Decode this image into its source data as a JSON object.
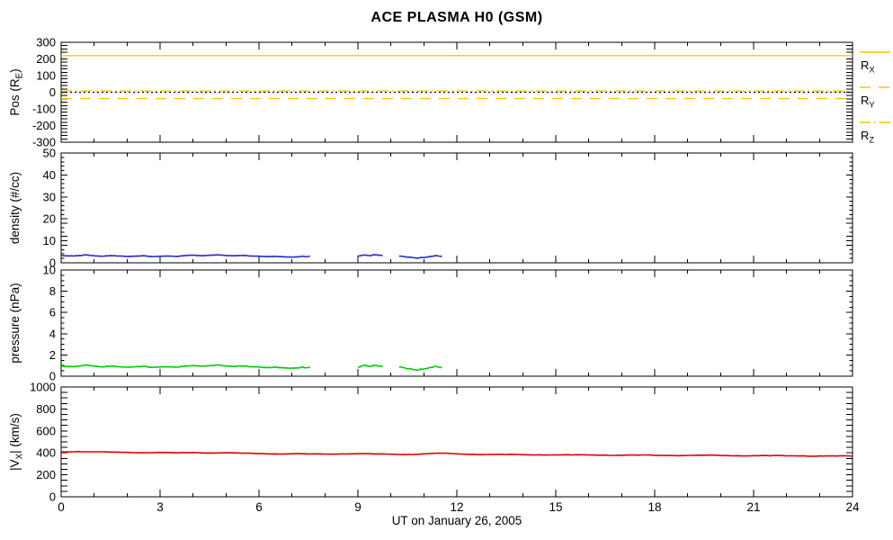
{
  "title": "ACE PLASMA H0 (GSM)",
  "xaxis": {
    "label": "UT on January 26, 2005",
    "min": 0,
    "max": 24,
    "major_step": 3,
    "minor_step": 1,
    "tick_labels": [
      "0",
      "3",
      "6",
      "9",
      "12",
      "15",
      "18",
      "21",
      "24"
    ]
  },
  "colors": {
    "background": "#ffffff",
    "axis": "#000000",
    "orange": "#fec400",
    "blue": "#2828cc",
    "green": "#00cc00",
    "red": "#dd0000"
  },
  "chart_data": {
    "type": "line",
    "grid": false,
    "legend_position": "right-of-first-panel",
    "panels": [
      {
        "name": "position",
        "ylabel": "Pos (R_E)",
        "ylabel_segments": [
          {
            "t": "Pos (R"
          },
          {
            "t": "E",
            "sub": true
          },
          {
            "t": ")"
          }
        ],
        "ylim": [
          -300,
          300
        ],
        "ymajor": 100,
        "yminor": 20,
        "ytick_labels": [
          "-300",
          "-200",
          "-100",
          "0",
          "100",
          "200",
          "300"
        ],
        "zero_line": true,
        "legend": true,
        "hlines": [
          {
            "id": "RX",
            "label": "R_X",
            "label_segments": [
              {
                "t": "R"
              },
              {
                "t": "X",
                "sub": true
              }
            ],
            "value": 220,
            "style": "solid",
            "color": "orange"
          },
          {
            "id": "RY",
            "label": "R_Y",
            "label_segments": [
              {
                "t": "R"
              },
              {
                "t": "Y",
                "sub": true
              }
            ],
            "value": -38,
            "style": "dashed",
            "color": "orange"
          },
          {
            "id": "RZ",
            "label": "R_Z",
            "label_segments": [
              {
                "t": "R"
              },
              {
                "t": "Z",
                "sub": true
              }
            ],
            "value": 8,
            "style": "dashdot",
            "color": "orange"
          }
        ]
      },
      {
        "name": "density",
        "ylabel": "density (#/cc)",
        "ylabel_segments": [
          {
            "t": "density (#/cc)"
          }
        ],
        "ylim": [
          0,
          50
        ],
        "ymajor": 10,
        "yminor": 2,
        "ytick_labels": [
          "0",
          "10",
          "20",
          "30",
          "40",
          "50"
        ],
        "series": [
          {
            "name": "proton-density",
            "color": "blue",
            "noise": 0.14,
            "segments": [
              [
                [
                  0,
                  3.3
                ],
                [
                  0.25,
                  3.1
                ],
                [
                  0.5,
                  3.2
                ],
                [
                  0.75,
                  3.6
                ],
                [
                  1,
                  3.2
                ],
                [
                  1.25,
                  3.0
                ],
                [
                  1.5,
                  3.3
                ],
                [
                  1.75,
                  3.1
                ],
                [
                  2,
                  2.9
                ],
                [
                  2.25,
                  3.0
                ],
                [
                  2.5,
                  3.2
                ],
                [
                  2.75,
                  2.8
                ],
                [
                  3,
                  3.0
                ],
                [
                  3.25,
                  3.1
                ],
                [
                  3.5,
                  2.9
                ],
                [
                  3.75,
                  3.3
                ],
                [
                  4,
                  3.5
                ],
                [
                  4.25,
                  3.2
                ],
                [
                  4.5,
                  3.4
                ],
                [
                  4.75,
                  3.6
                ],
                [
                  5,
                  3.3
                ],
                [
                  5.25,
                  3.2
                ],
                [
                  5.5,
                  3.4
                ],
                [
                  5.75,
                  3.1
                ],
                [
                  6,
                  3.0
                ],
                [
                  6.25,
                  2.8
                ],
                [
                  6.5,
                  2.9
                ],
                [
                  6.75,
                  2.7
                ],
                [
                  7,
                  2.6
                ],
                [
                  7.25,
                  2.8
                ],
                [
                  7.55,
                  3.0
                ]
              ],
              [
                [
                  9.0,
                  3.2
                ],
                [
                  9.2,
                  3.5
                ],
                [
                  9.35,
                  3.3
                ],
                [
                  9.5,
                  3.6
                ],
                [
                  9.65,
                  3.4
                ],
                [
                  9.75,
                  3.3
                ]
              ],
              [
                [
                  10.25,
                  3.0
                ],
                [
                  10.45,
                  2.7
                ],
                [
                  10.65,
                  2.4
                ],
                [
                  10.85,
                  2.2
                ],
                [
                  11.05,
                  2.5
                ],
                [
                  11.25,
                  2.9
                ],
                [
                  11.4,
                  3.2
                ],
                [
                  11.55,
                  3.0
                ]
              ]
            ]
          }
        ]
      },
      {
        "name": "pressure",
        "ylabel": "pressure (nPa)",
        "ylabel_segments": [
          {
            "t": "pressure (nPa)"
          }
        ],
        "ylim": [
          0,
          10
        ],
        "ymajor": 2,
        "yminor": 0.5,
        "ytick_labels": [
          "0",
          "2",
          "4",
          "6",
          "8",
          "10"
        ],
        "series": [
          {
            "name": "flow-pressure",
            "color": "green",
            "noise": 0.05,
            "segments": [
              [
                [
                  0,
                  0.95
                ],
                [
                  0.25,
                  0.9
                ],
                [
                  0.5,
                  0.92
                ],
                [
                  0.75,
                  1.05
                ],
                [
                  1,
                  0.95
                ],
                [
                  1.25,
                  0.88
                ],
                [
                  1.5,
                  0.97
                ],
                [
                  1.75,
                  0.9
                ],
                [
                  2,
                  0.85
                ],
                [
                  2.25,
                  0.88
                ],
                [
                  2.5,
                  0.93
                ],
                [
                  2.75,
                  0.82
                ],
                [
                  3,
                  0.87
                ],
                [
                  3.25,
                  0.9
                ],
                [
                  3.5,
                  0.85
                ],
                [
                  3.75,
                  0.95
                ],
                [
                  4,
                  1.0
                ],
                [
                  4.25,
                  0.93
                ],
                [
                  4.5,
                  0.98
                ],
                [
                  4.75,
                  1.05
                ],
                [
                  5,
                  0.96
                ],
                [
                  5.25,
                  0.93
                ],
                [
                  5.5,
                  0.98
                ],
                [
                  5.75,
                  0.9
                ],
                [
                  6,
                  0.87
                ],
                [
                  6.25,
                  0.8
                ],
                [
                  6.5,
                  0.84
                ],
                [
                  6.75,
                  0.78
                ],
                [
                  7,
                  0.75
                ],
                [
                  7.25,
                  0.8
                ],
                [
                  7.55,
                  0.85
                ]
              ],
              [
                [
                  9.0,
                  0.9
                ],
                [
                  9.2,
                  1.0
                ],
                [
                  9.35,
                  0.95
                ],
                [
                  9.5,
                  1.0
                ],
                [
                  9.65,
                  0.95
                ],
                [
                  9.75,
                  0.93
                ]
              ],
              [
                [
                  10.25,
                  0.85
                ],
                [
                  10.45,
                  0.75
                ],
                [
                  10.65,
                  0.65
                ],
                [
                  10.85,
                  0.6
                ],
                [
                  11.05,
                  0.7
                ],
                [
                  11.25,
                  0.82
                ],
                [
                  11.4,
                  0.9
                ],
                [
                  11.55,
                  0.85
                ]
              ]
            ]
          }
        ]
      },
      {
        "name": "vx",
        "ylabel": "|V_X| (km/s)",
        "ylabel_segments": [
          {
            "t": "|V"
          },
          {
            "t": "X",
            "sub": true
          },
          {
            "t": "| (km/s)"
          }
        ],
        "ylim": [
          0,
          1000
        ],
        "ymajor": 200,
        "yminor": 50,
        "ytick_labels": [
          "0",
          "200",
          "400",
          "600",
          "800",
          "1000"
        ],
        "series": [
          {
            "name": "vx-magnitude",
            "color": "red",
            "noise": 3,
            "segments": [
              [
                [
                  0,
                  408
                ],
                [
                  0.5,
                  412
                ],
                [
                  1,
                  410
                ],
                [
                  1.5,
                  407
                ],
                [
                  2,
                  404
                ],
                [
                  2.5,
                  402
                ],
                [
                  3,
                  404
                ],
                [
                  3.5,
                  400
                ],
                [
                  4,
                  403
                ],
                [
                  4.5,
                  399
                ],
                [
                  5,
                  401
                ],
                [
                  5.5,
                  397
                ],
                [
                  6,
                  394
                ],
                [
                  6.5,
                  391
                ],
                [
                  7,
                  392
                ],
                [
                  7.5,
                  390
                ],
                [
                  8,
                  389
                ],
                [
                  8.5,
                  391
                ],
                [
                  9,
                  393
                ],
                [
                  9.5,
                  390
                ],
                [
                  10,
                  388
                ],
                [
                  10.5,
                  386
                ],
                [
                  11,
                  391
                ],
                [
                  11.5,
                  397
                ],
                [
                  12,
                  391
                ],
                [
                  12.5,
                  387
                ],
                [
                  13,
                  386
                ],
                [
                  13.5,
                  385
                ],
                [
                  14,
                  384
                ],
                [
                  14.5,
                  383
                ],
                [
                  15,
                  382
                ],
                [
                  15.5,
                  381
                ],
                [
                  16,
                  381
                ],
                [
                  16.5,
                  380
                ],
                [
                  17,
                  379
                ],
                [
                  17.5,
                  379
                ],
                [
                  18,
                  378
                ],
                [
                  18.5,
                  377
                ],
                [
                  19,
                  377
                ],
                [
                  19.5,
                  378
                ],
                [
                  20,
                  376
                ],
                [
                  20.5,
                  375
                ],
                [
                  21,
                  375
                ],
                [
                  21.5,
                  374
                ],
                [
                  22,
                  373
                ],
                [
                  22.5,
                  374
                ],
                [
                  23,
                  372
                ],
                [
                  23.5,
                  371
                ],
                [
                  24,
                  370
                ]
              ]
            ]
          }
        ]
      }
    ]
  }
}
